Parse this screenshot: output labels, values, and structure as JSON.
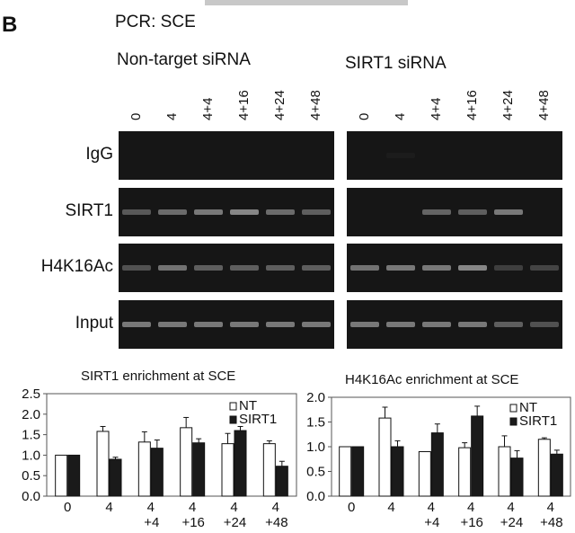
{
  "panel_letter": "B",
  "subtitle": "PCR: SCE",
  "groups": [
    {
      "label": "Non-target siRNA",
      "lanes": [
        "0",
        "4",
        "4+4",
        "4+16",
        "4+24",
        "4+48"
      ]
    },
    {
      "label": "SIRT1 siRNA",
      "lanes": [
        "0",
        "4",
        "4+4",
        "4+16",
        "4+24",
        "4+48"
      ]
    }
  ],
  "gel_rows": [
    {
      "label": "IgG",
      "nt": [
        0,
        0,
        0,
        0,
        0,
        0
      ],
      "sirt1": [
        0,
        0.05,
        0,
        0,
        0,
        0
      ]
    },
    {
      "label": "SIRT1",
      "nt": [
        0.5,
        0.65,
        0.75,
        0.85,
        0.65,
        0.55
      ],
      "sirt1": [
        0,
        0,
        0.6,
        0.55,
        0.75,
        0
      ]
    },
    {
      "label": "H4K16Ac",
      "nt": [
        0.45,
        0.7,
        0.55,
        0.55,
        0.55,
        0.55
      ],
      "sirt1": [
        0.7,
        0.75,
        0.75,
        0.85,
        0.3,
        0.35
      ]
    },
    {
      "label": "Input",
      "nt": [
        0.75,
        0.75,
        0.75,
        0.75,
        0.75,
        0.75
      ],
      "sirt1": [
        0.75,
        0.75,
        0.75,
        0.75,
        0.55,
        0.45
      ]
    }
  ],
  "colors": {
    "gel": "#161616",
    "band": "#9a9a9a",
    "nt_bar": "#ffffff",
    "sirt1_bar": "#1a1a1a"
  },
  "chart_data": [
    {
      "type": "bar",
      "title": "SIRT1 enrichment at SCE",
      "categories": [
        [
          "0",
          ""
        ],
        [
          "4",
          ""
        ],
        [
          "4",
          "+4"
        ],
        [
          "4",
          "+16"
        ],
        [
          "4",
          "+24"
        ],
        [
          "4",
          "+48"
        ]
      ],
      "series": [
        {
          "name": "NT",
          "values": [
            1.0,
            1.58,
            1.32,
            1.67,
            1.28,
            1.28
          ],
          "errors": [
            0,
            0.12,
            0.25,
            0.25,
            0.25,
            0.07
          ]
        },
        {
          "name": "SIRT1",
          "values": [
            1.0,
            0.9,
            1.17,
            1.3,
            1.6,
            0.73
          ],
          "errors": [
            0,
            0.05,
            0.2,
            0.1,
            0.1,
            0.12
          ]
        }
      ],
      "ylim": [
        0,
        2.5
      ],
      "yticks": [
        "0.0",
        "0.5",
        "1.0",
        "1.5",
        "2.0",
        "2.5"
      ],
      "legend": "top-right",
      "grid": false
    },
    {
      "type": "bar",
      "title": "H4K16Ac enrichment at SCE",
      "categories": [
        [
          "0",
          ""
        ],
        [
          "4",
          ""
        ],
        [
          "4",
          "+4"
        ],
        [
          "4",
          "+16"
        ],
        [
          "4",
          "+24"
        ],
        [
          "4",
          "+48"
        ]
      ],
      "series": [
        {
          "name": "NT",
          "values": [
            1.0,
            1.58,
            0.9,
            0.98,
            1.0,
            1.15
          ],
          "errors": [
            0,
            0.22,
            0,
            0.1,
            0.22,
            0.03
          ]
        },
        {
          "name": "SIRT1",
          "values": [
            1.0,
            1.0,
            1.28,
            1.62,
            0.77,
            0.85
          ],
          "errors": [
            0,
            0.12,
            0.18,
            0.2,
            0.15,
            0.08
          ]
        }
      ],
      "ylim": [
        0,
        2.0
      ],
      "yticks": [
        "0.0",
        "0.5",
        "1.0",
        "1.5",
        "2.0"
      ],
      "legend": "top-right",
      "grid": false
    }
  ]
}
